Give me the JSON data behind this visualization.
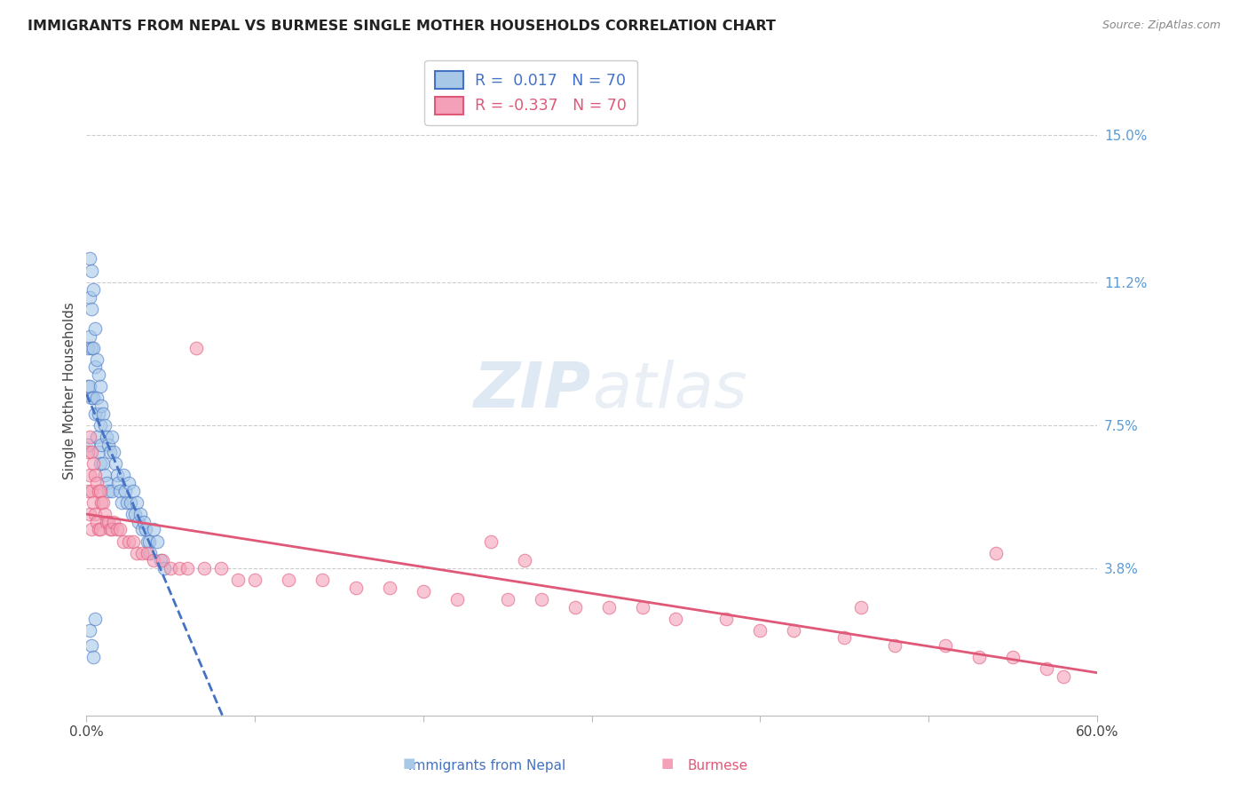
{
  "title": "IMMIGRANTS FROM NEPAL VS BURMESE SINGLE MOTHER HOUSEHOLDS CORRELATION CHART",
  "source": "Source: ZipAtlas.com",
  "ylabel": "Single Mother Households",
  "legend_nepal": "Immigrants from Nepal",
  "legend_burmese": "Burmese",
  "r_nepal": 0.017,
  "n_nepal": 70,
  "r_burmese": -0.337,
  "n_burmese": 70,
  "color_nepal": "#a8c8e8",
  "color_burmese": "#f4a0b8",
  "trendline_nepal_color": "#4472c4",
  "trendline_burmese_color": "#e05878",
  "watermark_zip": "ZIP",
  "watermark_atlas": "atlas",
  "ytick_labels": [
    "15.0%",
    "11.2%",
    "7.5%",
    "3.8%"
  ],
  "ytick_values": [
    0.15,
    0.112,
    0.075,
    0.038
  ],
  "xmin": 0.0,
  "xmax": 0.6,
  "ymin": 0.0,
  "ymax": 0.168,
  "nepal_x": [
    0.001,
    0.001,
    0.001,
    0.002,
    0.002,
    0.002,
    0.002,
    0.003,
    0.003,
    0.003,
    0.003,
    0.004,
    0.004,
    0.004,
    0.005,
    0.005,
    0.005,
    0.006,
    0.006,
    0.006,
    0.007,
    0.007,
    0.007,
    0.008,
    0.008,
    0.008,
    0.009,
    0.009,
    0.01,
    0.01,
    0.011,
    0.011,
    0.012,
    0.012,
    0.013,
    0.013,
    0.014,
    0.015,
    0.015,
    0.016,
    0.017,
    0.018,
    0.019,
    0.02,
    0.021,
    0.022,
    0.023,
    0.024,
    0.025,
    0.026,
    0.027,
    0.028,
    0.029,
    0.03,
    0.031,
    0.032,
    0.033,
    0.034,
    0.035,
    0.036,
    0.037,
    0.038,
    0.04,
    0.042,
    0.044,
    0.046,
    0.002,
    0.003,
    0.004,
    0.005
  ],
  "nepal_y": [
    0.095,
    0.085,
    0.07,
    0.118,
    0.108,
    0.098,
    0.085,
    0.115,
    0.105,
    0.095,
    0.082,
    0.11,
    0.095,
    0.082,
    0.1,
    0.09,
    0.078,
    0.092,
    0.082,
    0.072,
    0.088,
    0.078,
    0.068,
    0.085,
    0.075,
    0.065,
    0.08,
    0.07,
    0.078,
    0.065,
    0.075,
    0.062,
    0.072,
    0.06,
    0.07,
    0.058,
    0.068,
    0.072,
    0.058,
    0.068,
    0.065,
    0.062,
    0.06,
    0.058,
    0.055,
    0.062,
    0.058,
    0.055,
    0.06,
    0.055,
    0.052,
    0.058,
    0.052,
    0.055,
    0.05,
    0.052,
    0.048,
    0.05,
    0.048,
    0.045,
    0.045,
    0.042,
    0.048,
    0.045,
    0.04,
    0.038,
    0.022,
    0.018,
    0.015,
    0.025
  ],
  "burmese_x": [
    0.001,
    0.001,
    0.002,
    0.002,
    0.002,
    0.003,
    0.003,
    0.003,
    0.004,
    0.004,
    0.005,
    0.005,
    0.006,
    0.006,
    0.007,
    0.007,
    0.008,
    0.008,
    0.009,
    0.01,
    0.011,
    0.012,
    0.013,
    0.014,
    0.015,
    0.016,
    0.018,
    0.02,
    0.022,
    0.025,
    0.028,
    0.03,
    0.033,
    0.036,
    0.04,
    0.045,
    0.05,
    0.055,
    0.06,
    0.065,
    0.07,
    0.08,
    0.09,
    0.1,
    0.12,
    0.14,
    0.16,
    0.18,
    0.2,
    0.22,
    0.25,
    0.27,
    0.29,
    0.31,
    0.33,
    0.35,
    0.38,
    0.4,
    0.42,
    0.45,
    0.48,
    0.51,
    0.53,
    0.55,
    0.57,
    0.58,
    0.24,
    0.26,
    0.54,
    0.46
  ],
  "burmese_y": [
    0.068,
    0.058,
    0.072,
    0.062,
    0.052,
    0.068,
    0.058,
    0.048,
    0.065,
    0.055,
    0.062,
    0.052,
    0.06,
    0.05,
    0.058,
    0.048,
    0.058,
    0.048,
    0.055,
    0.055,
    0.052,
    0.05,
    0.05,
    0.048,
    0.048,
    0.05,
    0.048,
    0.048,
    0.045,
    0.045,
    0.045,
    0.042,
    0.042,
    0.042,
    0.04,
    0.04,
    0.038,
    0.038,
    0.038,
    0.095,
    0.038,
    0.038,
    0.035,
    0.035,
    0.035,
    0.035,
    0.033,
    0.033,
    0.032,
    0.03,
    0.03,
    0.03,
    0.028,
    0.028,
    0.028,
    0.025,
    0.025,
    0.022,
    0.022,
    0.02,
    0.018,
    0.018,
    0.015,
    0.015,
    0.012,
    0.01,
    0.045,
    0.04,
    0.042,
    0.028
  ]
}
